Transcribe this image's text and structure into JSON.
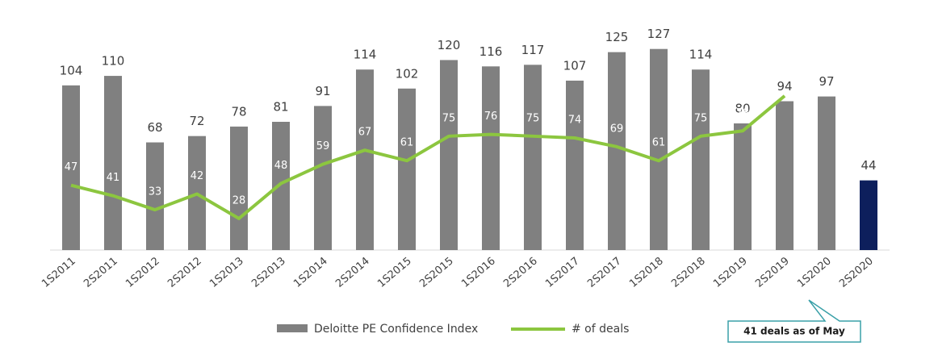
{
  "chart_data": {
    "type": "bar",
    "categories": [
      "1S2011",
      "2S2011",
      "1S2012",
      "2S2012",
      "1S2013",
      "2S2013",
      "1S2014",
      "2S2014",
      "1S2015",
      "2S2015",
      "1S2016",
      "2S2016",
      "1S2017",
      "2S2017",
      "1S2018",
      "2S2018",
      "1S2019",
      "2S2019",
      "1S2020",
      "2S2020"
    ],
    "series": [
      {
        "name": "Deloitte PE Confidence Index",
        "type": "bar",
        "color": "#808080",
        "colors": [
          "#808080",
          "#808080",
          "#808080",
          "#808080",
          "#808080",
          "#808080",
          "#808080",
          "#808080",
          "#808080",
          "#808080",
          "#808080",
          "#808080",
          "#808080",
          "#808080",
          "#808080",
          "#808080",
          "#808080",
          "#808080",
          "#808080",
          "#0d1f5c"
        ],
        "values": [
          104,
          110,
          68,
          72,
          78,
          81,
          91,
          114,
          102,
          120,
          116,
          117,
          107,
          125,
          127,
          114,
          80,
          94,
          97,
          44
        ]
      },
      {
        "name": "# of deals",
        "type": "line",
        "axis": "y2",
        "color": "#8cc63f",
        "values": [
          47,
          41,
          33,
          42,
          28,
          48,
          59,
          67,
          61,
          75,
          76,
          75,
          74,
          69,
          61,
          75,
          78,
          98,
          null,
          null
        ]
      }
    ],
    "ylim": [
      0,
      135
    ],
    "y2lim": [
      10,
      132
    ],
    "annotation": "41 deals as of May"
  }
}
